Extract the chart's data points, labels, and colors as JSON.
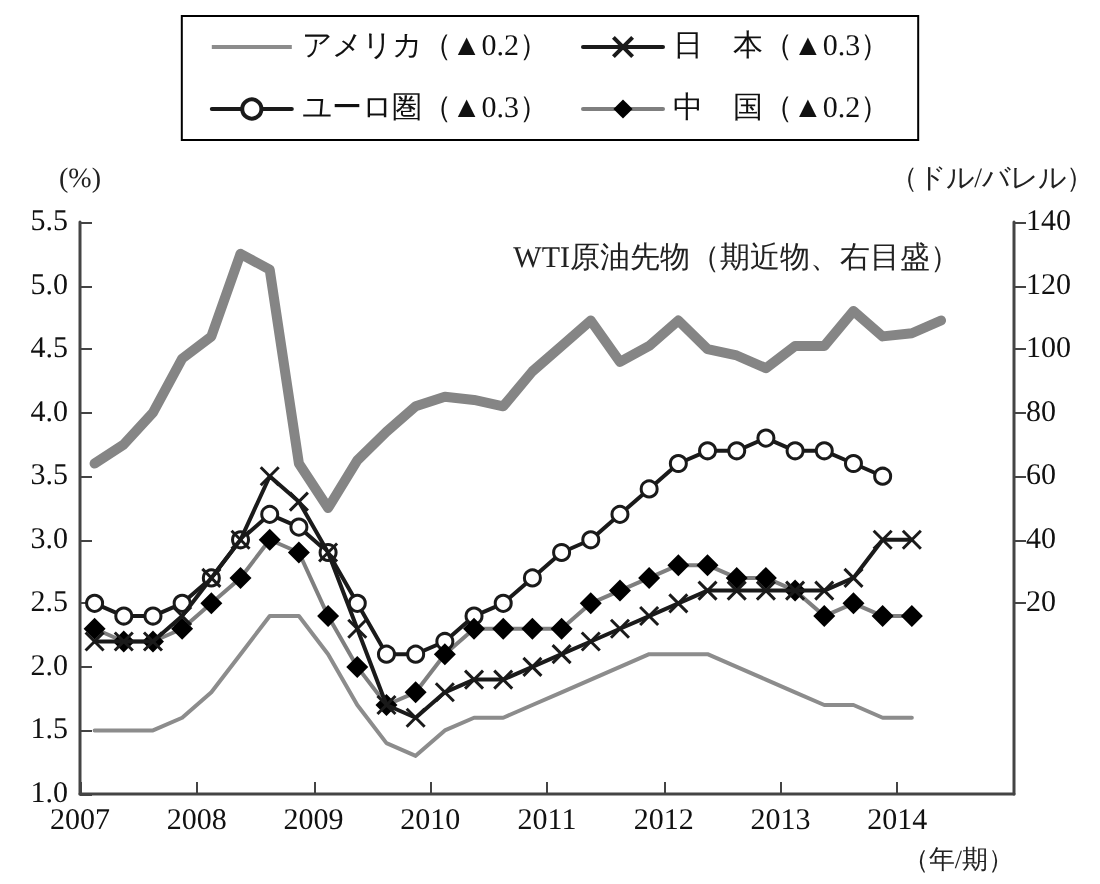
{
  "chart_data": {
    "type": "line",
    "x": [
      2007.125,
      2007.375,
      2007.625,
      2007.875,
      2008.125,
      2008.375,
      2008.625,
      2008.875,
      2009.125,
      2009.375,
      2009.625,
      2009.875,
      2010.125,
      2010.375,
      2010.625,
      2010.875,
      2011.125,
      2011.375,
      2011.625,
      2011.875,
      2012.125,
      2012.375,
      2012.625,
      2012.875,
      2013.125,
      2013.375,
      2013.625,
      2013.875,
      2014.125,
      2014.375
    ],
    "series": [
      {
        "name": "アメリカ（▲0.2）",
        "color": "#8c8c8c",
        "marker": "none",
        "values": [
          1.5,
          1.5,
          1.5,
          1.6,
          1.8,
          2.1,
          2.4,
          2.4,
          2.1,
          1.7,
          1.4,
          1.3,
          1.5,
          1.6,
          1.6,
          1.7,
          1.8,
          1.9,
          2.0,
          2.1,
          2.1,
          2.1,
          2.0,
          1.9,
          1.8,
          1.7,
          1.7,
          1.6,
          1.6,
          null
        ]
      },
      {
        "name": "日　本（▲0.3）",
        "color": "#1a1a1a",
        "marker": "cross",
        "values": [
          2.2,
          2.2,
          2.2,
          2.4,
          2.7,
          3.0,
          3.5,
          3.3,
          2.9,
          2.3,
          1.7,
          1.6,
          1.8,
          1.9,
          1.9,
          2.0,
          2.1,
          2.2,
          2.3,
          2.4,
          2.5,
          2.6,
          2.6,
          2.6,
          2.6,
          2.6,
          2.7,
          3.0,
          3.0,
          null
        ]
      },
      {
        "name": "ユーロ圏（▲0.3）",
        "color": "#1a1a1a",
        "marker": "circle",
        "values": [
          2.5,
          2.4,
          2.4,
          2.5,
          2.7,
          3.0,
          3.2,
          3.1,
          2.9,
          2.5,
          2.1,
          2.1,
          2.2,
          2.4,
          2.5,
          2.7,
          2.9,
          3.0,
          3.2,
          3.4,
          3.6,
          3.7,
          3.7,
          3.8,
          3.7,
          3.7,
          3.6,
          3.5,
          null,
          null
        ]
      },
      {
        "name": "中　国（▲0.2）",
        "color": "#7f7f7f",
        "marker": "diamond",
        "values": [
          2.3,
          2.2,
          2.2,
          2.3,
          2.5,
          2.7,
          3.0,
          2.9,
          2.4,
          2.0,
          1.7,
          1.8,
          2.1,
          2.3,
          2.3,
          2.3,
          2.3,
          2.5,
          2.6,
          2.7,
          2.8,
          2.8,
          2.7,
          2.7,
          2.6,
          2.4,
          2.5,
          2.4,
          2.4,
          null
        ]
      },
      {
        "color": "#858585",
        "marker": "none",
        "axis": "y2",
        "values": [
          64,
          70,
          80,
          97,
          104,
          130,
          125,
          64,
          50,
          65,
          74,
          82,
          85,
          84,
          82,
          93,
          101,
          109,
          96,
          101,
          109,
          100,
          98,
          94,
          101,
          101,
          112,
          104,
          105,
          109
        ]
      }
    ],
    "xlim": [
      2007,
      2015
    ],
    "xticks": [
      2007,
      2008,
      2009,
      2010,
      2011,
      2012,
      2013,
      2014
    ],
    "ylim": [
      1.0,
      5.5
    ],
    "yticks": [
      {
        "value": 1.0,
        "label": "1.0"
      },
      {
        "value": 1.5,
        "label": "1.5"
      },
      {
        "value": 2.0,
        "label": "2.0"
      },
      {
        "value": 2.5,
        "label": "2.5"
      },
      {
        "value": 3.0,
        "label": "3.0"
      },
      {
        "value": 3.5,
        "label": "3.5"
      },
      {
        "value": 4.0,
        "label": "4.0"
      },
      {
        "value": 4.5,
        "label": "4.5"
      },
      {
        "value": 5.0,
        "label": "5.0"
      },
      {
        "value": 5.5,
        "label": "5.5"
      }
    ],
    "y2lim": [
      -40,
      140
    ],
    "y2ticks": [
      20,
      40,
      60,
      80,
      100,
      120,
      140
    ],
    "xlabel": "（年/期）",
    "ylabel": "(%)",
    "y2label": "（ドル/バレル）",
    "annotations": [
      "WTI原油先物（期近物、右目盛）"
    ],
    "legend": "top",
    "grid": false
  }
}
